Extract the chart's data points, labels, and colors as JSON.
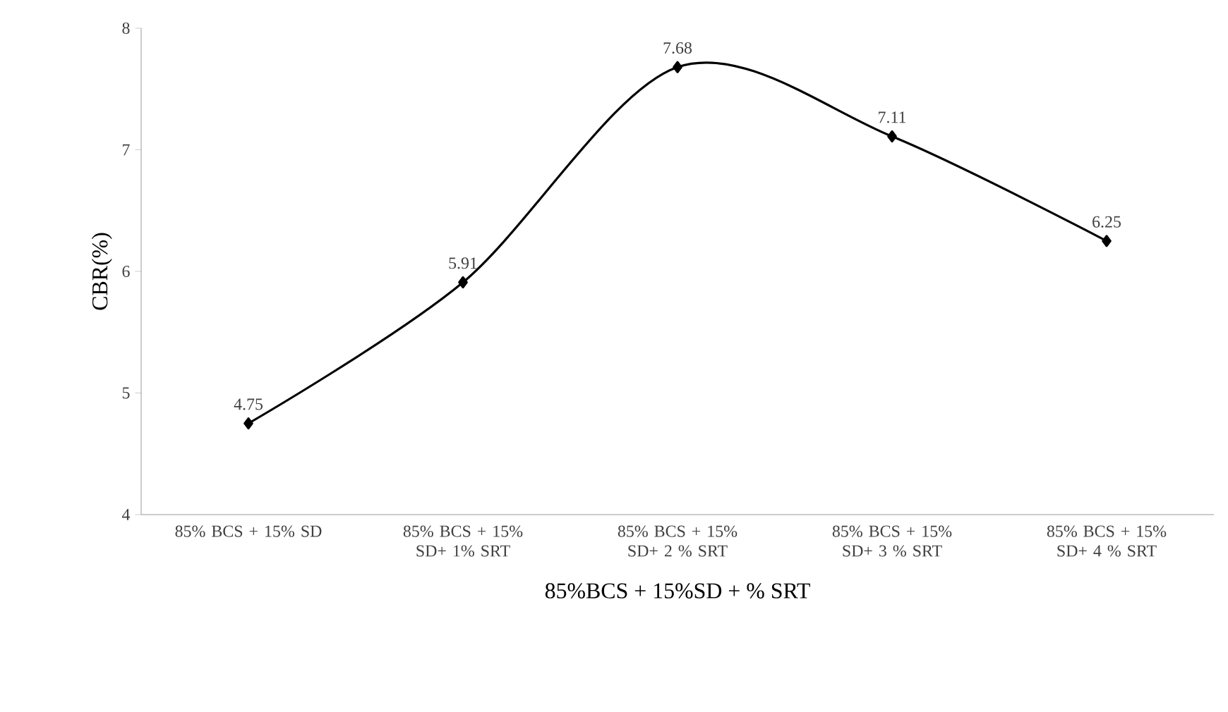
{
  "chart_data": {
    "type": "line",
    "xlabel": "85%BCS + 15%SD + % SRT",
    "ylabel": "CBR(%)",
    "categories": [
      "85% BCS + 15% SD",
      "85% BCS + 15% SD+ 1% SRT",
      "85% BCS + 15% SD+ 2 % SRT",
      "85% BCS + 15% SD+ 3 % SRT",
      "85% BCS + 15% SD+ 4 % SRT"
    ],
    "values": [
      4.75,
      5.91,
      7.68,
      7.11,
      6.25
    ],
    "color": "#000000",
    "marker": "diamond",
    "data_labels": true,
    "ylim": [
      4,
      8
    ],
    "yticks": [
      4,
      5,
      6,
      7,
      8
    ]
  }
}
